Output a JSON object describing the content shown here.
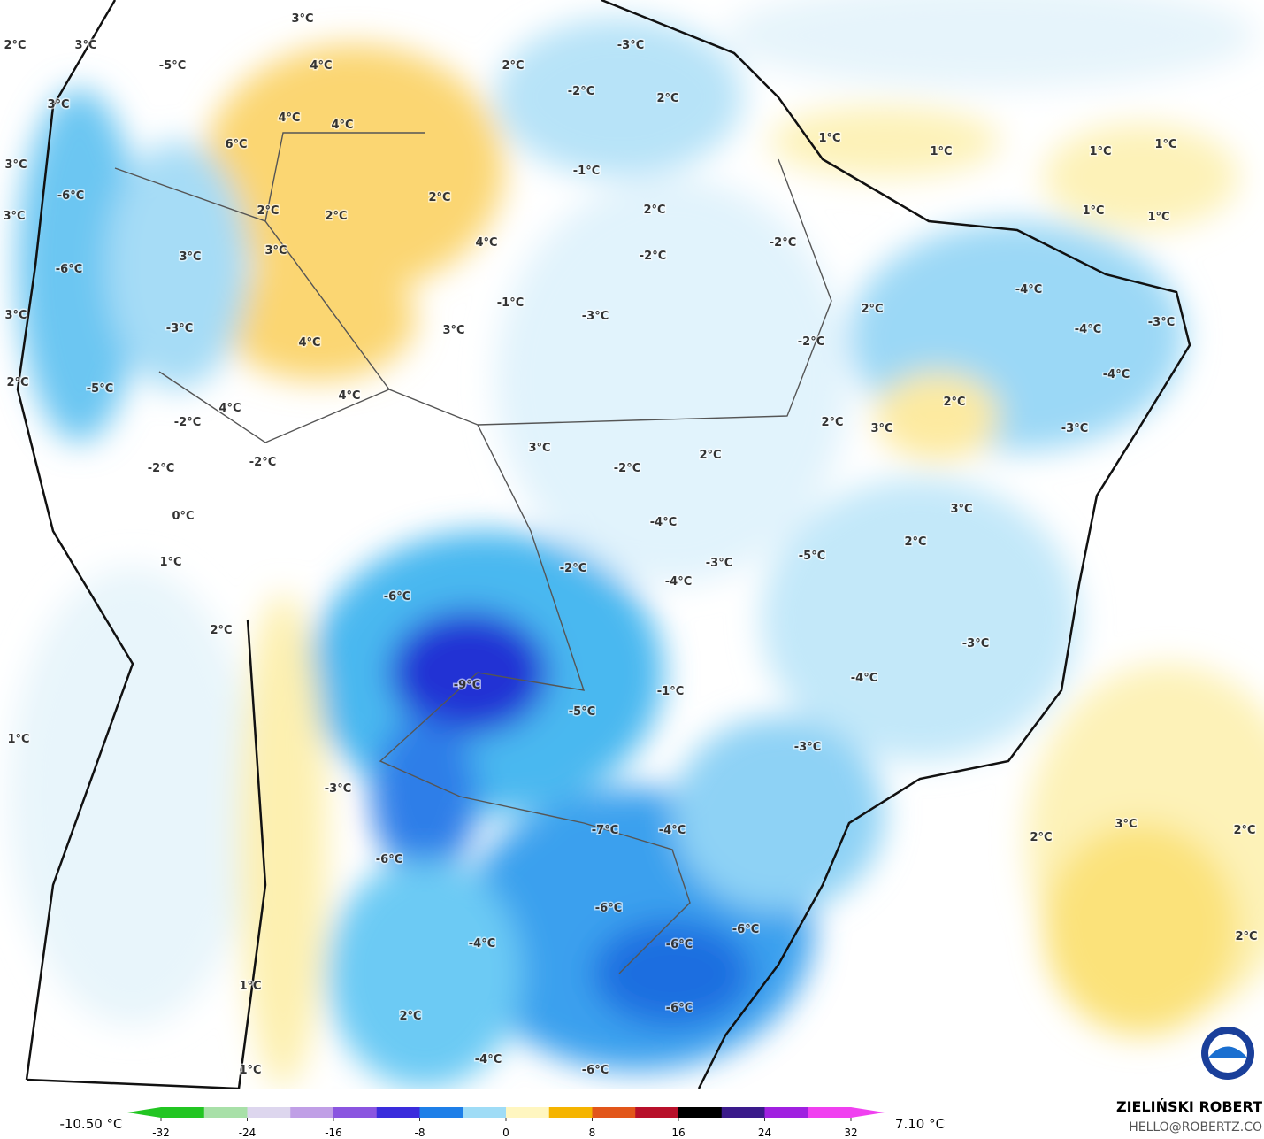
{
  "map": {
    "labels": [
      "2°C",
      "3°C",
      "3°C",
      "-5°C",
      "4°C",
      "2°C",
      "-3°C",
      "3°C",
      "-2°C",
      "2°C",
      "4°C",
      "4°C",
      "6°C",
      "1°C",
      "1°C",
      "1°C",
      "1°C",
      "3°C",
      "-1°C",
      "-6°C",
      "2°C",
      "2°C",
      "2°C",
      "2°C",
      "1°C",
      "1°C",
      "3°C",
      "4°C",
      "-2°C",
      "3°C",
      "3°C",
      "-2°C",
      "-6°C",
      "-4°C",
      "-1°C",
      "2°C",
      "-3°C",
      "3°C",
      "-3°C",
      "-3°C",
      "-4°C",
      "4°C",
      "3°C",
      "-2°C",
      "2°C",
      "-5°C",
      "-4°C",
      "4°C",
      "4°C",
      "2°C",
      "-2°C",
      "2°C",
      "3°C",
      "-3°C",
      "3°C",
      "2°C",
      "-2°C",
      "-2°C",
      "-2°C",
      "3°C",
      "0°C",
      "-4°C",
      "2°C",
      "-5°C",
      "1°C",
      "-2°C",
      "-3°C",
      "-4°C",
      "-6°C",
      "2°C",
      "-3°C",
      "-4°C",
      "-9°C",
      "-1°C",
      "-5°C",
      "1°C",
      "-3°C",
      "-3°C",
      "-7°C",
      "-4°C",
      "2°C",
      "3°C",
      "2°C",
      "-6°C",
      "-6°C",
      "-6°C",
      "2°C",
      "-4°C",
      "-6°C",
      "1°C",
      "-6°C",
      "2°C",
      "-4°C",
      "1°C",
      "-6°C"
    ]
  },
  "colorbar": {
    "min_label": "-10.50 °C",
    "max_label": "7.10 °C",
    "range": [
      -32,
      32
    ],
    "ticks": [
      -32,
      -24,
      -16,
      -8,
      0,
      8,
      16,
      24,
      32
    ],
    "colors": [
      "#22c522",
      "#a8e0a8",
      "#ddd6ee",
      "#c09fe6",
      "#8a55e0",
      "#3a2cdc",
      "#1e7fe8",
      "#9fdcf6",
      "#fff6c0",
      "#f5b400",
      "#e2561a",
      "#b8102a",
      "#000000",
      "#3a1a8a",
      "#a020e0",
      "#f040f0"
    ]
  },
  "credit": {
    "name": "ZIELIŃSKI ROBERT",
    "email": "HELLO@ROBERTZ.CO"
  }
}
